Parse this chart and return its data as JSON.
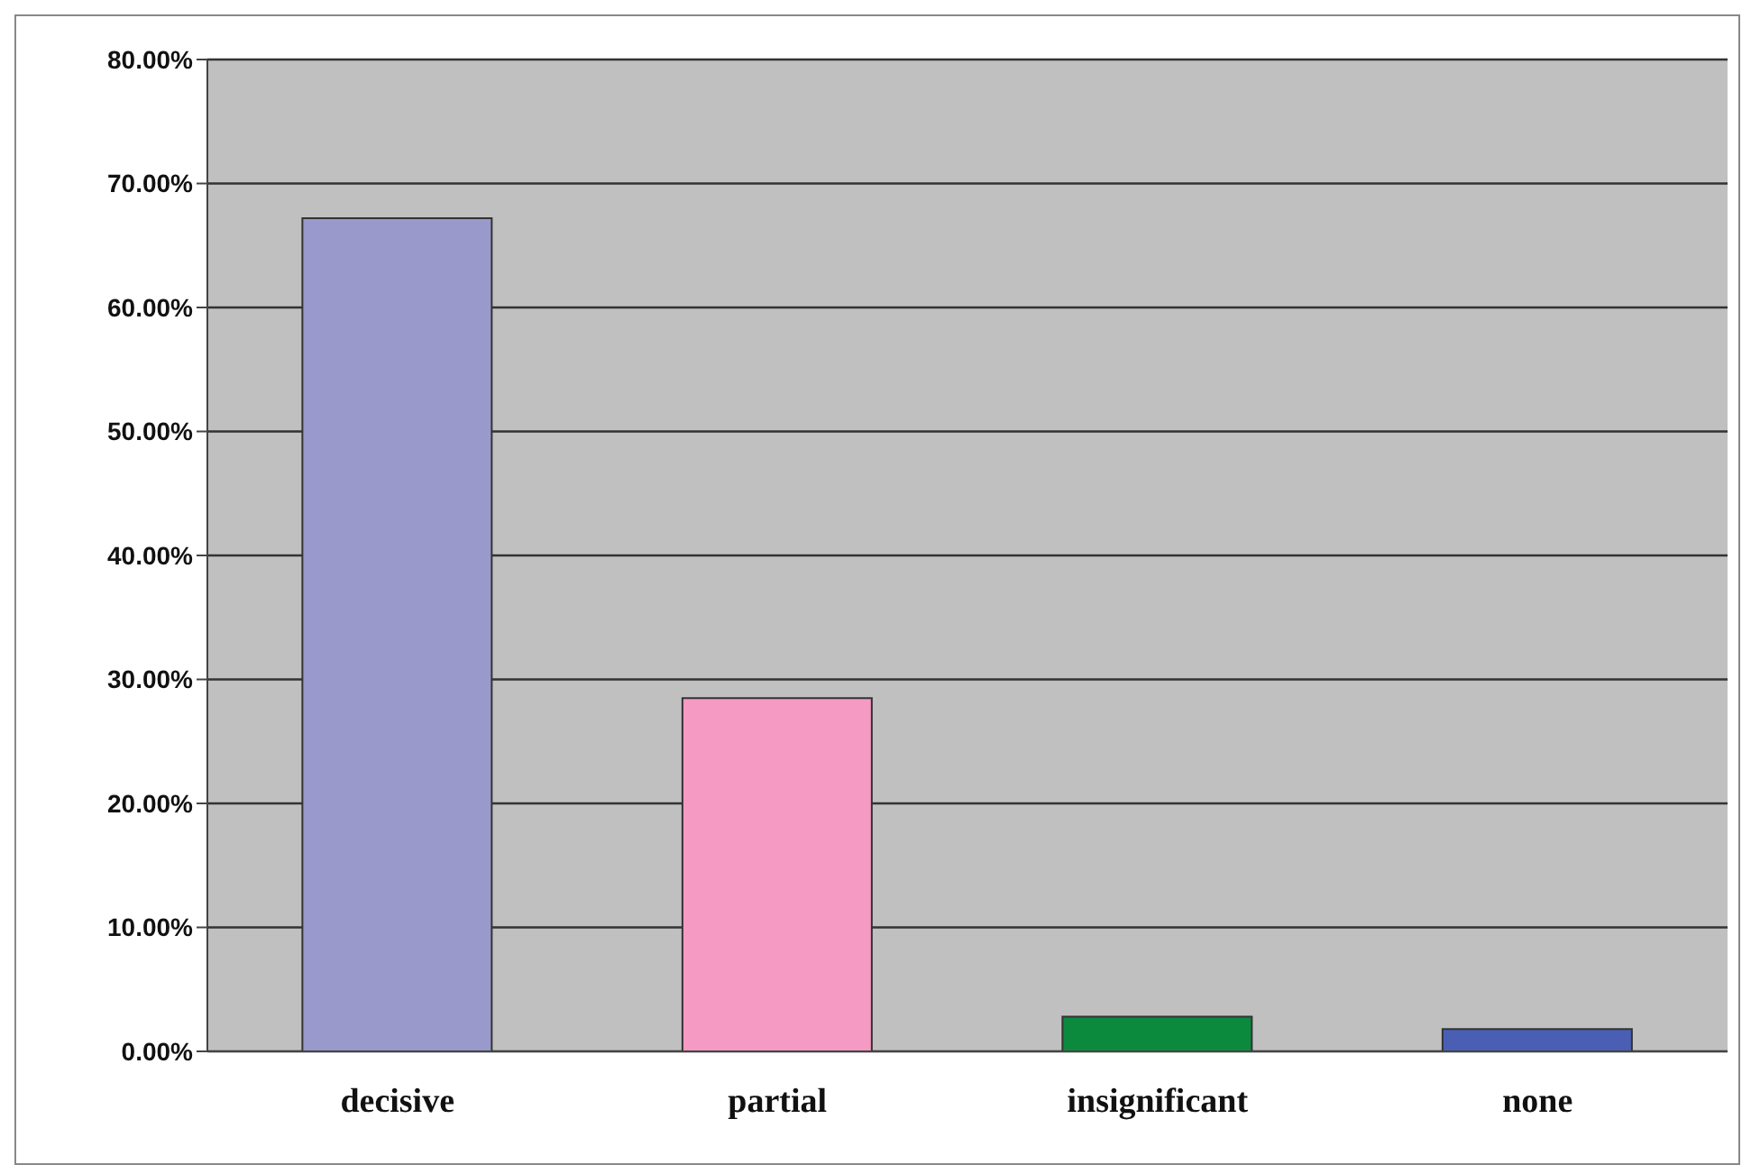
{
  "chart_data": {
    "type": "bar",
    "categories": [
      "decisive",
      "partial",
      "insignificant",
      "none"
    ],
    "values": [
      67.2,
      28.5,
      2.8,
      1.8
    ],
    "colors": [
      "#9999cc",
      "#f59ac2",
      "#0b8a3e",
      "#4a5fb3"
    ],
    "ylim": [
      0,
      80
    ],
    "yticks": [
      {
        "value": 0,
        "label": "0.00%"
      },
      {
        "value": 10,
        "label": "10.00%"
      },
      {
        "value": 20,
        "label": "20.00%"
      },
      {
        "value": 30,
        "label": "30.00%"
      },
      {
        "value": 40,
        "label": "40.00%"
      },
      {
        "value": 50,
        "label": "50.00%"
      },
      {
        "value": 60,
        "label": "60.00%"
      },
      {
        "value": 70,
        "label": "70.00%"
      },
      {
        "value": 80,
        "label": "80.00%"
      }
    ],
    "grid": "y",
    "legend": false
  }
}
